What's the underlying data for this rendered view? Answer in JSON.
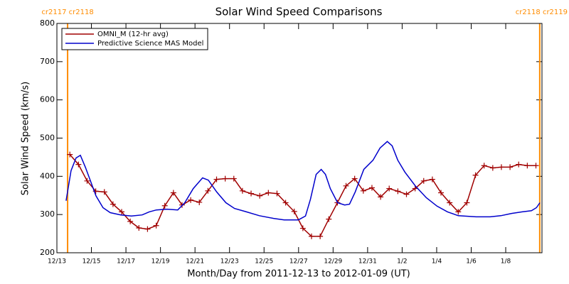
{
  "chart_data": {
    "type": "line",
    "title": "Solar Wind Speed Comparisons",
    "x_label": "Month/Day from 2011-12-13 to 2012-01-09 (UT)",
    "y_label": "Solar Wind Speed (km/s)",
    "xlim": [
      0,
      28.1
    ],
    "ylim": [
      200,
      800
    ],
    "yticks": [
      200,
      300,
      400,
      500,
      600,
      700,
      800
    ],
    "xticks": [
      {
        "value": 0,
        "label": "12/13"
      },
      {
        "value": 2,
        "label": "12/15"
      },
      {
        "value": 4,
        "label": "12/17"
      },
      {
        "value": 6,
        "label": "12/19"
      },
      {
        "value": 8,
        "label": "12/21"
      },
      {
        "value": 10,
        "label": "12/23"
      },
      {
        "value": 12,
        "label": "12/25"
      },
      {
        "value": 14,
        "label": "12/27"
      },
      {
        "value": 16,
        "label": "12/29"
      },
      {
        "value": 18,
        "label": "12/31"
      },
      {
        "value": 20,
        "label": "1/2"
      },
      {
        "value": 22,
        "label": "1/4"
      },
      {
        "value": 24,
        "label": "1/6"
      },
      {
        "value": 26,
        "label": "1/8"
      }
    ],
    "rotation_boundaries": [
      {
        "x": 0.62,
        "label": "cr2117 cr2118",
        "color": "#ff8c00"
      },
      {
        "x": 27.97,
        "label": "cr2118 cr2119",
        "color": "#ff8c00"
      }
    ],
    "legend": "upper left",
    "series": [
      {
        "name": "OMNI_M (12-hr avg)",
        "color": "#a00000",
        "marker": "plus",
        "x": [
          0.75,
          1.25,
          1.75,
          2.25,
          2.75,
          3.25,
          3.75,
          4.25,
          4.75,
          5.25,
          5.75,
          6.25,
          6.75,
          7.25,
          7.75,
          8.25,
          8.75,
          9.25,
          9.75,
          10.25,
          10.75,
          11.25,
          11.75,
          12.25,
          12.75,
          13.25,
          13.75,
          14.25,
          14.75,
          15.25,
          15.75,
          16.25,
          16.75,
          17.25,
          17.75,
          18.25,
          18.75,
          19.25,
          19.75,
          20.25,
          20.75,
          21.25,
          21.75,
          22.25,
          22.75,
          23.25,
          23.75,
          24.25,
          24.75,
          25.25,
          25.75,
          26.25,
          26.75,
          27.25,
          27.75
        ],
        "values": [
          457,
          431,
          388,
          361,
          359,
          327,
          307,
          282,
          265,
          262,
          271,
          323,
          357,
          325,
          338,
          332,
          362,
          392,
          394,
          394,
          362,
          355,
          349,
          357,
          355,
          331,
          308,
          264,
          243,
          243,
          288,
          331,
          375,
          394,
          362,
          370,
          346,
          368,
          361,
          353,
          368,
          388,
          392,
          357,
          331,
          307,
          331,
          403,
          428,
          422,
          424,
          424,
          431,
          428,
          428
        ]
      },
      {
        "name": "Predictive Science MAS Model",
        "color": "#0000cc",
        "marker": "none",
        "x": [
          0.53,
          0.82,
          1.11,
          1.36,
          1.65,
          1.93,
          2.26,
          2.67,
          3.09,
          3.7,
          4.32,
          4.94,
          5.35,
          5.76,
          6.38,
          7.0,
          7.41,
          7.9,
          8.44,
          8.77,
          9.26,
          9.79,
          10.29,
          10.91,
          11.73,
          12.55,
          13.17,
          13.99,
          14.4,
          14.69,
          15.02,
          15.31,
          15.56,
          15.84,
          16.26,
          16.67,
          16.95,
          17.28,
          17.78,
          18.31,
          18.72,
          19.14,
          19.42,
          19.75,
          20.16,
          20.78,
          21.4,
          22.02,
          22.63,
          23.25,
          24.28,
          25.1,
          25.72,
          26.34,
          26.95,
          27.49,
          27.78,
          27.98
        ],
        "values": [
          336,
          415,
          448,
          455,
          424,
          390,
          349,
          318,
          305,
          299,
          296,
          299,
          307,
          312,
          314,
          312,
          331,
          368,
          396,
          390,
          359,
          331,
          316,
          308,
          297,
          290,
          286,
          286,
          296,
          340,
          405,
          418,
          405,
          368,
          331,
          325,
          327,
          359,
          418,
          442,
          474,
          491,
          480,
          442,
          411,
          374,
          344,
          322,
          307,
          297,
          294,
          294,
          297,
          303,
          307,
          310,
          318,
          331
        ]
      }
    ]
  }
}
